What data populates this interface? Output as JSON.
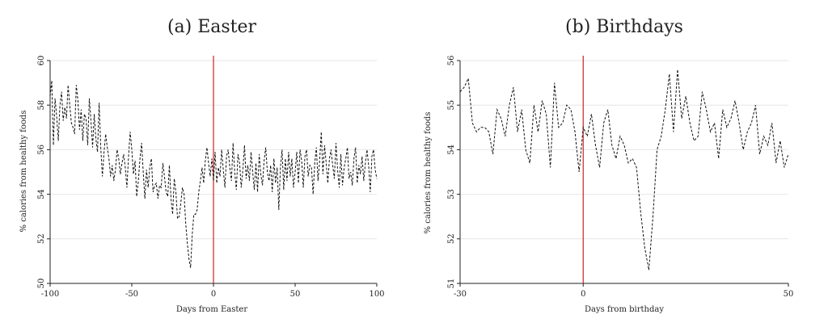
{
  "chart_data": [
    {
      "type": "line",
      "title": "(a) Easter",
      "xlabel": "Days from Easter",
      "ylabel": "% calories from healthy foods",
      "xlim": [
        -100,
        100
      ],
      "ylim": [
        50,
        60
      ],
      "xticks": [
        -100,
        -50,
        0,
        50,
        100
      ],
      "yticks": [
        50,
        52,
        54,
        56,
        58,
        60
      ],
      "grid": true,
      "event_line_x": 0,
      "colors": {
        "series": "#111111",
        "event_line": "#cc2222",
        "grid": "#e6e6e6"
      },
      "series": [
        {
          "x": [
            -100,
            -99,
            -98,
            -97,
            -96,
            -95,
            -94,
            -93,
            -92,
            -91,
            -90,
            -89,
            -88,
            -87,
            -86,
            -85,
            -84,
            -83,
            -82,
            -81,
            -80,
            -79,
            -78,
            -77,
            -76,
            -75,
            -74,
            -73,
            -72,
            -71,
            -70,
            -69,
            -68,
            -67,
            -66,
            -65,
            -64,
            -63,
            -62,
            -61,
            -60,
            -59,
            -58,
            -57,
            -56,
            -55,
            -54,
            -53,
            -52,
            -51,
            -50,
            -49,
            -48,
            -47,
            -46,
            -45,
            -44,
            -43,
            -42,
            -41,
            -40,
            -39,
            -38,
            -37,
            -36,
            -35,
            -34,
            -33,
            -32,
            -31,
            -30,
            -29,
            -28,
            -27,
            -26,
            -25,
            -24,
            -23,
            -22,
            -21,
            -20,
            -19,
            -18,
            -17,
            -16,
            -15,
            -14,
            -13,
            -12,
            -11,
            -10,
            -9,
            -8,
            -7,
            -6,
            -5,
            -4,
            -3,
            -2,
            -1,
            0,
            1,
            2,
            3,
            4,
            5,
            6,
            7,
            8,
            9,
            10,
            11,
            12,
            13,
            14,
            15,
            16,
            17,
            18,
            19,
            20,
            21,
            22,
            23,
            24,
            25,
            26,
            27,
            28,
            29,
            30,
            31,
            32,
            33,
            34,
            35,
            36,
            37,
            38,
            39,
            40,
            41,
            42,
            43,
            44,
            45,
            46,
            47,
            48,
            49,
            50,
            51,
            52,
            53,
            54,
            55,
            56,
            57,
            58,
            59,
            60,
            61,
            62,
            63,
            64,
            65,
            66,
            67,
            68,
            69,
            70,
            71,
            72,
            73,
            74,
            75,
            76,
            77,
            78,
            79,
            80,
            81,
            82,
            83,
            84,
            85,
            86,
            87,
            88,
            89,
            90,
            91,
            92,
            93,
            94,
            95,
            96,
            97,
            98,
            99,
            100
          ],
          "y": [
            58.4,
            59.1,
            56.2,
            58.3,
            57.5,
            56.4,
            58.0,
            58.6,
            57.3,
            57.9,
            57.4,
            58.9,
            58.0,
            57.2,
            57.0,
            56.7,
            58.9,
            58.2,
            56.9,
            57.8,
            56.4,
            57.6,
            57.4,
            56.2,
            58.3,
            57.3,
            56.1,
            57.6,
            56.5,
            55.9,
            58.1,
            56.1,
            54.8,
            55.9,
            56.7,
            56.1,
            55.6,
            54.8,
            55.3,
            54.6,
            55.1,
            56.0,
            55.6,
            54.9,
            55.4,
            55.8,
            55.2,
            54.3,
            55.7,
            56.8,
            56.0,
            54.9,
            55.5,
            53.9,
            54.6,
            55.6,
            56.3,
            55.0,
            53.8,
            55.1,
            54.3,
            55.2,
            55.6,
            54.1,
            54.4,
            54.5,
            53.8,
            54.4,
            54.3,
            55.4,
            54.8,
            54.1,
            53.9,
            55.3,
            53.8,
            53.1,
            54.7,
            54.1,
            52.9,
            53.0,
            53.6,
            54.3,
            54.0,
            52.7,
            51.8,
            51.1,
            50.7,
            52.2,
            53.1,
            53.1,
            53.3,
            54.1,
            54.6,
            55.2,
            54.5,
            55.5,
            56.1,
            55.4,
            54.8,
            55.6,
            54.6,
            55.9,
            54.5,
            55.2,
            54.8,
            56.0,
            55.1,
            54.3,
            55.7,
            56.0,
            55.2,
            54.6,
            56.3,
            55.0,
            54.2,
            55.8,
            55.4,
            54.3,
            55.1,
            56.2,
            54.7,
            55.3,
            54.6,
            55.9,
            55.0,
            54.2,
            55.4,
            54.1,
            55.8,
            54.9,
            54.4,
            55.5,
            56.1,
            55.0,
            54.6,
            55.3,
            54.1,
            55.6,
            54.5,
            55.2,
            53.3,
            55.2,
            56.0,
            54.2,
            55.6,
            54.6,
            55.9,
            54.8,
            55.6,
            54.3,
            55.0,
            55.9,
            54.5,
            56.0,
            55.5,
            54.3,
            55.7,
            56.0,
            54.8,
            55.3,
            55.2,
            54.0,
            55.4,
            56.1,
            54.6,
            55.5,
            56.8,
            54.9,
            56.2,
            55.4,
            54.5,
            55.6,
            56.0,
            55.3,
            54.7,
            56.3,
            55.1,
            54.3,
            55.8,
            54.4,
            55.2,
            55.6,
            56.1,
            54.7,
            55.0,
            54.4,
            55.6,
            56.1,
            54.5,
            55.3,
            54.9,
            55.7,
            54.6,
            55.4,
            56.0,
            55.3,
            54.1,
            55.7,
            56.0,
            55.1,
            54.7
          ],
          "note": "dashed black line"
        }
      ]
    },
    {
      "type": "line",
      "title": "(b) Birthdays",
      "xlabel": "Days from birthday",
      "ylabel": "% calories from healthy foods",
      "xlim": [
        -30,
        50
      ],
      "ylim": [
        51,
        56
      ],
      "xticks": [
        -30,
        0,
        50
      ],
      "yticks": [
        51,
        52,
        53,
        54,
        55,
        56
      ],
      "grid": true,
      "event_line_x": 0,
      "colors": {
        "series": "#111111",
        "event_line": "#cc2222",
        "grid": "#e6e6e6"
      },
      "series": [
        {
          "x": [
            -30,
            -29,
            -28,
            -27,
            -26,
            -25,
            -24,
            -23,
            -22,
            -21,
            -20,
            -19,
            -18,
            -17,
            -16,
            -15,
            -14,
            -13,
            -12,
            -11,
            -10,
            -9,
            -8,
            -7,
            -6,
            -5,
            -4,
            -3,
            -2,
            -1,
            0,
            1,
            2,
            3,
            4,
            5,
            6,
            7,
            8,
            9,
            10,
            11,
            12,
            13,
            14,
            15,
            16,
            17,
            18,
            19,
            20,
            21,
            22,
            23,
            24,
            25,
            26,
            27,
            28,
            29,
            30,
            31,
            32,
            33,
            34,
            35,
            36,
            37,
            38,
            39,
            40,
            41,
            42,
            43,
            44,
            45,
            46,
            47,
            48,
            49,
            50
          ],
          "y": [
            55.3,
            55.4,
            55.6,
            54.6,
            54.4,
            54.5,
            54.5,
            54.4,
            53.9,
            54.9,
            54.7,
            54.3,
            55.0,
            55.4,
            54.4,
            54.9,
            54.0,
            53.7,
            55.0,
            54.4,
            55.1,
            54.8,
            53.6,
            55.5,
            54.5,
            54.6,
            55.0,
            54.9,
            54.4,
            53.5,
            54.5,
            54.3,
            54.8,
            54.1,
            53.6,
            54.6,
            54.9,
            54.1,
            53.8,
            54.3,
            54.1,
            53.7,
            53.8,
            53.6,
            52.6,
            51.8,
            51.3,
            52.5,
            54.0,
            54.3,
            54.9,
            55.7,
            54.4,
            55.8,
            54.7,
            55.2,
            54.6,
            54.2,
            54.3,
            55.3,
            54.9,
            54.4,
            54.6,
            53.8,
            54.9,
            54.5,
            54.7,
            55.1,
            54.6,
            54.0,
            54.4,
            54.6,
            55.0,
            53.9,
            54.3,
            54.1,
            54.6,
            53.7,
            54.2,
            53.6,
            53.9
          ],
          "note": "dashed black line"
        }
      ]
    }
  ]
}
